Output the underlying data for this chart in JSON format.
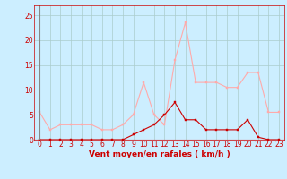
{
  "x": [
    0,
    1,
    2,
    3,
    4,
    5,
    6,
    7,
    8,
    9,
    10,
    11,
    12,
    13,
    14,
    15,
    16,
    17,
    18,
    19,
    20,
    21,
    22,
    23
  ],
  "avg_wind": [
    0,
    0,
    0,
    0,
    0,
    0,
    0,
    0,
    0,
    1,
    2,
    3,
    5,
    7.5,
    4,
    4,
    2,
    2,
    2,
    2,
    4,
    0.5,
    0,
    0
  ],
  "gust_wind": [
    5.5,
    2,
    3,
    3,
    3,
    3,
    2,
    2,
    3,
    5,
    11.5,
    5,
    3,
    16,
    23.5,
    11.5,
    11.5,
    11.5,
    10.5,
    10.5,
    13.5,
    13.5,
    5.5,
    5.5
  ],
  "avg_color": "#cc0000",
  "gust_color": "#ffaaaa",
  "background_color": "#cceeff",
  "grid_color": "#aacccc",
  "xlabel": "Vent moyen/en rafales ( km/h )",
  "ylim": [
    0,
    27
  ],
  "xlim": [
    -0.5,
    23.5
  ],
  "yticks": [
    0,
    5,
    10,
    15,
    20,
    25
  ],
  "xticks": [
    0,
    1,
    2,
    3,
    4,
    5,
    6,
    7,
    8,
    9,
    10,
    11,
    12,
    13,
    14,
    15,
    16,
    17,
    18,
    19,
    20,
    21,
    22,
    23
  ],
  "tick_fontsize": 5.5,
  "xlabel_fontsize": 6.5
}
